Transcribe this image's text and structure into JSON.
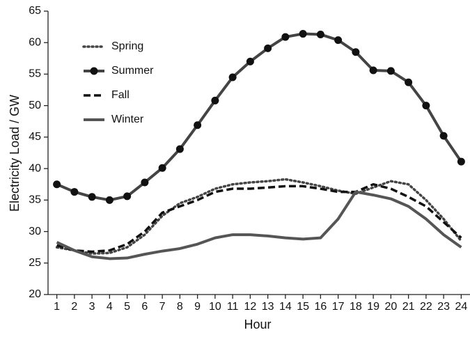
{
  "chart_data": {
    "type": "line",
    "x_label": "Hour",
    "y_label": "Electricity Load / GW",
    "x": [
      1,
      2,
      3,
      4,
      5,
      6,
      7,
      8,
      9,
      10,
      11,
      12,
      13,
      14,
      15,
      16,
      17,
      18,
      19,
      20,
      21,
      22,
      23,
      24
    ],
    "series": [
      {
        "name": "Spring",
        "color": "#444444",
        "line_style": "dotted",
        "values": [
          27.5,
          27.0,
          26.5,
          26.6,
          27.5,
          29.5,
          32.5,
          34.5,
          35.5,
          36.8,
          37.5,
          37.8,
          38.0,
          38.3,
          37.8,
          37.2,
          36.5,
          36.0,
          37.0,
          38.0,
          37.5,
          35.0,
          32.0,
          28.5
        ]
      },
      {
        "name": "Summer",
        "color": "#444444",
        "line_style": "solid",
        "marker": "circle",
        "values": [
          37.5,
          36.3,
          35.5,
          35.0,
          35.6,
          37.8,
          40.1,
          43.1,
          46.9,
          50.8,
          54.5,
          57.0,
          59.1,
          60.9,
          61.4,
          61.3,
          60.4,
          58.5,
          55.6,
          55.5,
          53.7,
          50.0,
          45.2,
          41.1
        ]
      },
      {
        "name": "Fall",
        "color": "#111111",
        "line_style": "dashed",
        "values": [
          27.8,
          27.0,
          26.8,
          27.0,
          28.0,
          30.0,
          33.0,
          34.0,
          35.0,
          36.3,
          36.8,
          36.8,
          37.0,
          37.2,
          37.2,
          36.8,
          36.3,
          36.3,
          37.5,
          36.8,
          35.5,
          34.0,
          31.5,
          29.0
        ]
      },
      {
        "name": "Winter",
        "color": "#555555",
        "line_style": "solid",
        "values": [
          28.3,
          27.0,
          26.0,
          25.7,
          25.8,
          26.4,
          26.9,
          27.3,
          28.0,
          29.0,
          29.5,
          29.5,
          29.3,
          29.0,
          28.8,
          29.0,
          32.0,
          36.3,
          35.8,
          35.2,
          34.0,
          32.0,
          29.5,
          27.5
        ]
      }
    ],
    "xlim": [
      0.5,
      24.5
    ],
    "xticks": [
      1,
      2,
      3,
      4,
      5,
      6,
      7,
      8,
      9,
      10,
      11,
      12,
      13,
      14,
      15,
      16,
      17,
      18,
      19,
      20,
      21,
      22,
      23,
      24
    ],
    "ylim": [
      20,
      65
    ],
    "yticks": [
      20,
      25,
      30,
      35,
      40,
      45,
      50,
      55,
      60,
      65
    ],
    "grid": false,
    "legend": "upper left"
  }
}
